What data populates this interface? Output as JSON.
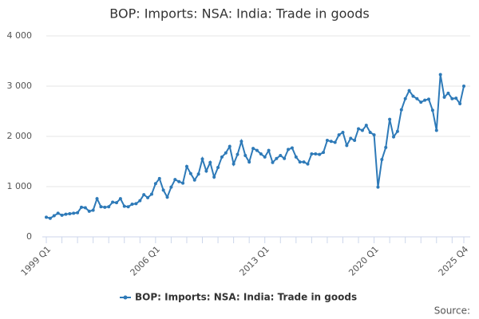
{
  "chart_data": {
    "type": "line",
    "title": "BOP: Imports: NSA: India: Trade in goods",
    "source": "Source:",
    "categories": [
      "1999 Q1",
      null,
      null,
      null,
      null,
      null,
      null,
      null,
      null,
      null,
      null,
      null,
      null,
      null,
      null,
      null,
      null,
      null,
      null,
      null,
      null,
      null,
      null,
      null,
      null,
      null,
      null,
      null,
      "2006 Q1",
      null,
      null,
      null,
      null,
      null,
      null,
      null,
      null,
      null,
      null,
      null,
      null,
      null,
      null,
      null,
      null,
      null,
      null,
      null,
      null,
      null,
      null,
      null,
      null,
      null,
      null,
      null,
      "2013 Q1",
      null,
      null,
      null,
      null,
      null,
      null,
      null,
      null,
      null,
      null,
      null,
      null,
      null,
      null,
      null,
      null,
      null,
      null,
      null,
      null,
      null,
      null,
      null,
      null,
      null,
      null,
      null,
      "2020 Q1",
      null,
      null,
      null,
      null,
      null,
      null,
      null,
      null,
      null,
      null,
      null,
      null,
      null,
      null,
      null,
      null,
      null,
      null,
      null,
      null,
      null,
      null,
      "2025 Q4"
    ],
    "series": [
      {
        "name": "BOP: Imports: NSA: India: Trade in goods",
        "color": "#2e7ab8",
        "values": [
          390,
          370,
          420,
          470,
          430,
          450,
          460,
          470,
          480,
          590,
          580,
          510,
          530,
          760,
          600,
          590,
          600,
          690,
          680,
          760,
          610,
          600,
          650,
          660,
          720,
          840,
          780,
          850,
          1060,
          1160,
          930,
          790,
          990,
          1140,
          1100,
          1070,
          1400,
          1260,
          1130,
          1250,
          1550,
          1310,
          1480,
          1190,
          1380,
          1590,
          1670,
          1800,
          1450,
          1640,
          1900,
          1620,
          1490,
          1760,
          1720,
          1650,
          1590,
          1720,
          1480,
          1560,
          1620,
          1560,
          1740,
          1770,
          1590,
          1490,
          1490,
          1450,
          1650,
          1650,
          1640,
          1680,
          1920,
          1900,
          1880,
          2030,
          2080,
          1820,
          1960,
          1920,
          2150,
          2120,
          2220,
          2080,
          2030,
          990,
          1540,
          1780,
          2340,
          1990,
          2100,
          2530,
          2750,
          2910,
          2800,
          2750,
          2680,
          2720,
          2740,
          2520,
          2120,
          3230,
          2780,
          2860,
          2750,
          2760,
          2650,
          3000
        ]
      }
    ],
    "ylim": [
      0,
      4000
    ],
    "yticks": [
      0,
      {
        "value": 1000,
        "label": "1 000"
      },
      {
        "value": 2000,
        "label": "2 000"
      },
      {
        "value": 3000,
        "label": "3 000"
      },
      {
        "value": 4000,
        "label": "4 000"
      }
    ],
    "grid": true
  }
}
